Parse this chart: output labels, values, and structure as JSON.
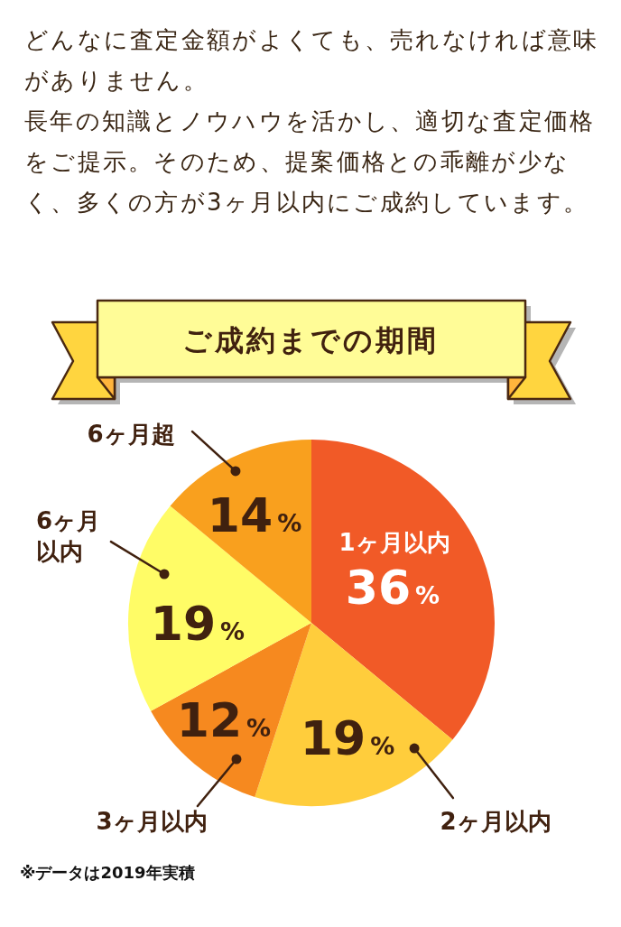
{
  "chart_data": {
    "type": "pie",
    "title": "ご成約までの期間",
    "subtitle": "どんなに査定金額がよくても、売れなければ意味がありません。",
    "categories": [
      "1ヶ月以内",
      "2ヶ月以内",
      "3ヶ月以内",
      "6ヶ月以内",
      "6ヶ月超"
    ],
    "values": [
      36,
      19,
      12,
      19,
      14
    ],
    "colors": [
      "#f15a27",
      "#ffcd3c",
      "#f6891f",
      "#fffc66",
      "#f9a01e"
    ],
    "value_labels": [
      "36%",
      "19%",
      "12%",
      "19%",
      "14%"
    ],
    "legend": false,
    "annotations": [
      "長年の知識とノウハウを活かし、適切な査定価格をご提示。そのため、提案価格との乖離が少なく、多くの方が3ヶ月以内にご成約しています。",
      "※データは2019年実積"
    ]
  }
}
